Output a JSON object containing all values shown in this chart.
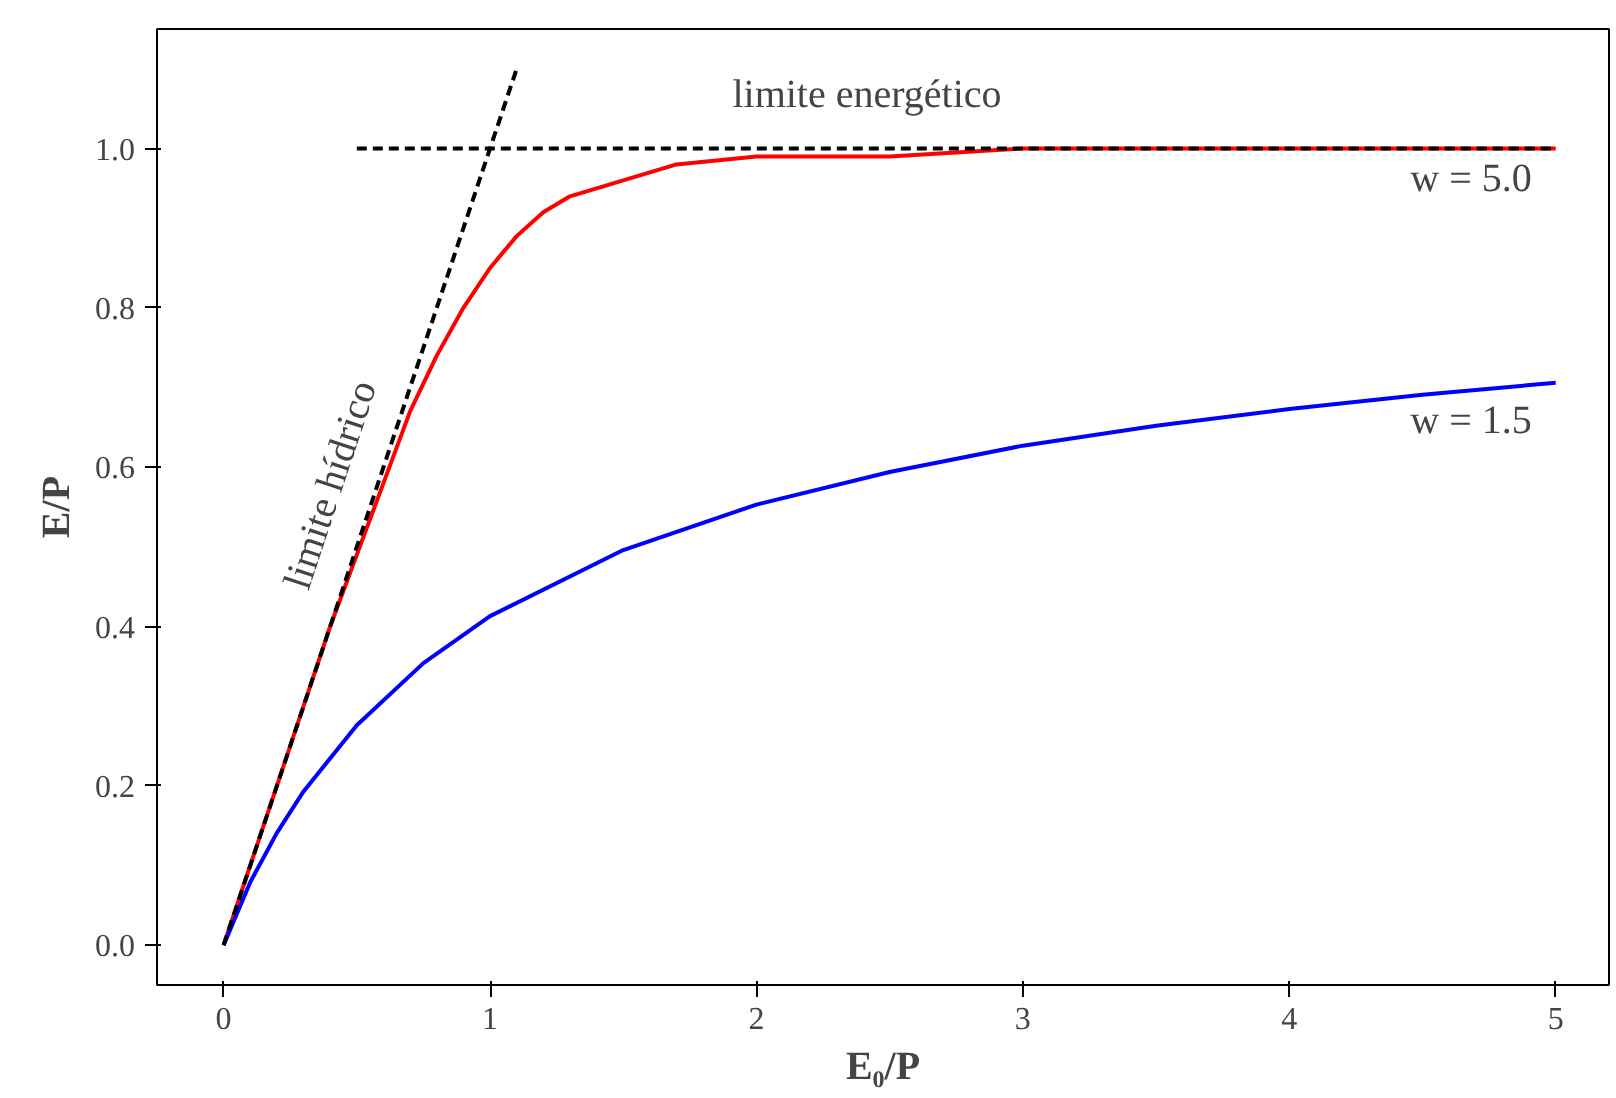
{
  "chart_data": {
    "type": "line",
    "xlabel": "E₀/P",
    "ylabel": "E/P",
    "xlim": [
      -0.25,
      5.2
    ],
    "ylim": [
      -0.05,
      1.15
    ],
    "xticks": [
      0,
      1,
      2,
      3,
      4,
      5
    ],
    "yticks": [
      {
        "value": 0,
        "label": "0.0"
      },
      {
        "value": 0.2,
        "label": "0.2"
      },
      {
        "value": 0.4,
        "label": "0.4"
      },
      {
        "value": 0.6,
        "label": "0.6"
      },
      {
        "value": 0.8,
        "label": "0.8"
      },
      {
        "value": 1.0,
        "label": "1.0"
      }
    ],
    "grid": false,
    "series": [
      {
        "color": "#ff0000",
        "line_style": "solid",
        "x": [
          0,
          0.1,
          0.2,
          0.3,
          0.4,
          0.5,
          0.6,
          0.7,
          0.8,
          0.9,
          1.0,
          1.1,
          1.2,
          1.3,
          1.4,
          1.5,
          1.7,
          2.0,
          2.5,
          3.0,
          4.0,
          5.0
        ],
        "values": [
          0,
          0.1,
          0.2,
          0.3,
          0.4,
          0.49,
          0.58,
          0.67,
          0.74,
          0.8,
          0.85,
          0.89,
          0.92,
          0.94,
          0.95,
          0.96,
          0.98,
          0.99,
          0.99,
          1.0,
          1.0,
          1.0
        ]
      },
      {
        "color": "#0000ff",
        "line_style": "solid",
        "x": [
          0,
          0.1,
          0.2,
          0.3,
          0.5,
          0.75,
          1.0,
          1.5,
          2.0,
          2.5,
          3.0,
          3.5,
          4.0,
          4.5,
          5.0
        ],
        "values": [
          0,
          0.079,
          0.141,
          0.193,
          0.276,
          0.354,
          0.413,
          0.496,
          0.553,
          0.594,
          0.627,
          0.652,
          0.673,
          0.691,
          0.706
        ]
      },
      {
        "color": "#000000",
        "line_style": "dashed",
        "x": [
          0,
          1.1
        ],
        "values": [
          0,
          1.1
        ]
      },
      {
        "color": "#000000",
        "line_style": "dashed",
        "x": [
          0.5,
          5.0
        ],
        "values": [
          1.0,
          1.0
        ]
      }
    ],
    "annotations": [
      "w = 5.0",
      "w = 1.5",
      "limite energético",
      "limite hídrico"
    ]
  }
}
